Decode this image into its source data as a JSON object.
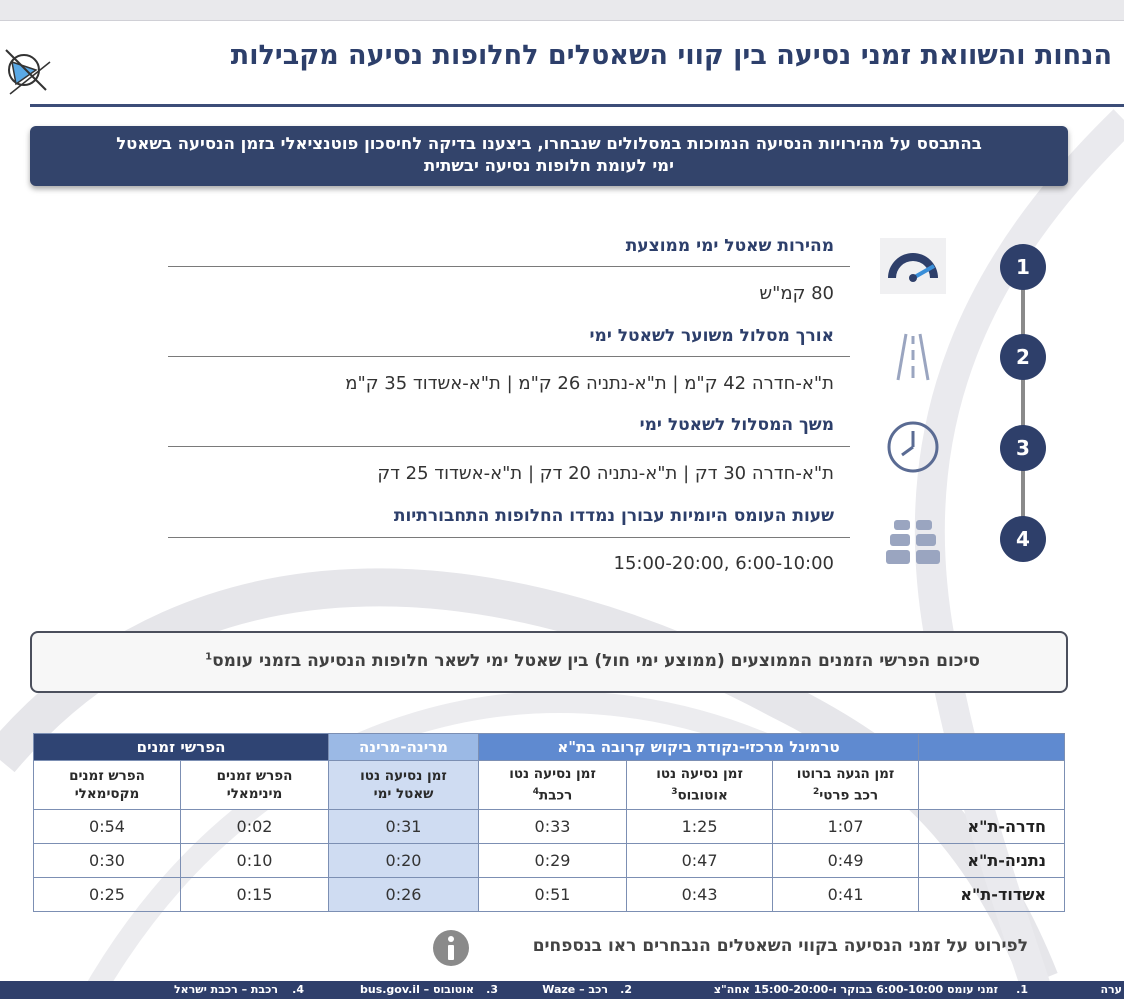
{
  "title": "הנחות והשוואת זמני נסיעה בין קווי השאטלים לחלופות נסיעה מקבילות",
  "banner": {
    "line1": "בהתבסס על מהירויות הנסיעה הנמוכות במסלולים שנבחרו, ביצענו בדיקה לחיסכון פוטנציאלי בזמן הנסיעה בשאטל",
    "line2": "ימי לעומת חלופות נסיעה יבשתית"
  },
  "items": [
    {
      "num": "1",
      "icon": "speedometer-icon",
      "heading": "מהירות שאטל ימי ממוצעת",
      "value": "80 קמ\"ש"
    },
    {
      "num": "2",
      "icon": "road-icon",
      "heading": "אורך מסלול משוער לשאטל ימי",
      "value": "ת\"א-חדרה 42 ק\"מ | ת\"א-נתניה 26 ק\"מ | ת\"א-אשדוד 35 ק\"מ"
    },
    {
      "num": "3",
      "icon": "clock-icon",
      "heading": "משך המסלול לשאטל ימי",
      "value": "ת\"א-חדרה 30 דק | ת\"א-נתניה 20 דק | ת\"א-אשדוד 25 דק"
    },
    {
      "num": "4",
      "icon": "traffic-icon",
      "heading": "שעות העומס היומיות עבורן נמדדו החלופות התחבורתיות",
      "value": "6:00-10:00 ,15:00-20:00"
    }
  ],
  "summary": {
    "text": "סיכום הפרשי הזמנים הממוצעים (ממוצע ימי חול) בין שאטל ימי לשאר חלופות הנסיעה בזמני עומס",
    "sup": "1"
  },
  "table": {
    "groups": {
      "terminal": "טרמינל מרכזי-נקודת ביקוש קרובה בת\"א",
      "marina": "מרינה-מרינה",
      "diffs": "הפרשי זמנים"
    },
    "cols": [
      {
        "l1": "זמן הגעה ברוטו",
        "l2": "רכב פרטי",
        "sup": "2"
      },
      {
        "l1": "זמן נסיעה נטו",
        "l2": "אוטובוס",
        "sup": "3"
      },
      {
        "l1": "זמן נסיעה נטו",
        "l2": "רכבת",
        "sup": "4"
      },
      {
        "l1": "זמן נסיעה נטו",
        "l2": "שאטל ימי",
        "sup": ""
      },
      {
        "l1": "הפרש זמנים",
        "l2": "מינימאלי",
        "sup": ""
      },
      {
        "l1": "הפרש זמנים",
        "l2": "מקסימאלי",
        "sup": ""
      }
    ],
    "rows": [
      {
        "label": "חדרה-ת\"א",
        "values": [
          "1:07",
          "1:25",
          "0:33",
          "0:31",
          "0:02",
          "0:54"
        ]
      },
      {
        "label": "נתניה-ת\"א",
        "values": [
          "0:49",
          "0:47",
          "0:29",
          "0:20",
          "0:10",
          "0:30"
        ]
      },
      {
        "label": "אשדוד-ת\"א",
        "values": [
          "0:41",
          "0:43",
          "0:51",
          "0:26",
          "0:15",
          "0:25"
        ]
      }
    ]
  },
  "note": "לפירוט על זמני הנסיעה בקווי השאטלים הנבחרים ראו בנספחים",
  "footer": {
    "prefix": "ערה",
    "n1": "1.",
    "t1": "זמני עומס 6:00-10:00 בבוקר ו-15:00-20:00 אחה\"צ",
    "n2": "2.",
    "t2": "רכב – Waze",
    "n3": "3.",
    "t3": "אוטובוס – bus.gov.il",
    "n4": "4.",
    "t4": "רכבת – רכבת ישראל"
  }
}
